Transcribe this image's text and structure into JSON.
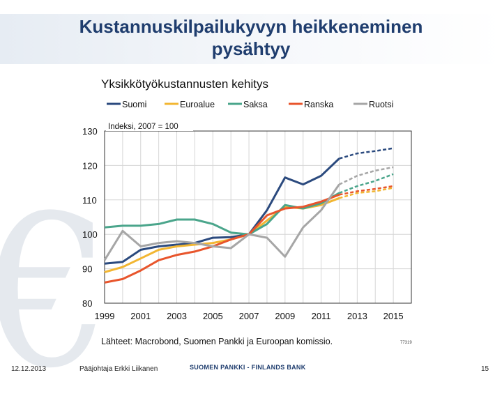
{
  "slide": {
    "title_line1": "Kustannuskilpailukyvyn heikkeneminen",
    "title_line2": "pysähtyy"
  },
  "footer": {
    "date": "12.12.2013",
    "author": "Pääjohtaja Erkki Liikanen",
    "bank": "SUOMEN PANKKI - FINLANDS BANK",
    "page": "15"
  },
  "colors": {
    "Suomi": "#2b4a7e",
    "Euroalue": "#f2b632",
    "Saksa": "#4aa58b",
    "Ranska": "#e8552c",
    "Ruotsi": "#a6a6a6"
  },
  "chart_data": {
    "type": "line",
    "title": "Yksikkötyökustannusten kehitys",
    "note": "Indeksi, 2007 = 100",
    "source": "Lähteet: Macrobond, Suomen Pankki ja Euroopan komissio.",
    "code": "77319",
    "ylim": [
      80,
      130
    ],
    "yticks": [
      80,
      90,
      100,
      110,
      120,
      130
    ],
    "xlim": [
      1999,
      2016
    ],
    "xticks": [
      1999,
      2001,
      2003,
      2005,
      2007,
      2009,
      2011,
      2013,
      2015
    ],
    "grid": true,
    "legend_position": "top",
    "forecast_start": 2012,
    "x": [
      1999,
      2000,
      2001,
      2002,
      2003,
      2004,
      2005,
      2006,
      2007,
      2008,
      2009,
      2010,
      2011,
      2012,
      2013,
      2014,
      2015
    ],
    "series": [
      {
        "name": "Suomi",
        "values": [
          91.5,
          92,
          95.5,
          96.5,
          97,
          97.5,
          99,
          99.2,
          100,
          107,
          116.5,
          114.5,
          117,
          122,
          123.5,
          124.2,
          125
        ]
      },
      {
        "name": "Euroalue",
        "values": [
          89,
          90.5,
          93,
          95.5,
          96.5,
          97,
          97.5,
          98.5,
          100,
          104,
          108,
          107.5,
          108.5,
          110.5,
          112,
          112.5,
          113.5
        ]
      },
      {
        "name": "Saksa",
        "values": [
          102,
          102.5,
          102.5,
          103,
          104.3,
          104.3,
          103,
          100.5,
          100,
          103,
          108.5,
          107.5,
          109,
          112,
          114,
          115.5,
          117.5
        ]
      },
      {
        "name": "Ranska",
        "values": [
          86,
          87,
          89.5,
          92.5,
          94,
          95,
          96.5,
          98.5,
          100,
          105.5,
          107.5,
          108,
          109.5,
          111.5,
          112.5,
          113.2,
          114
        ]
      },
      {
        "name": "Ruotsi",
        "values": [
          92.5,
          101,
          96.5,
          97.5,
          98,
          97.5,
          96.5,
          96,
          100,
          99,
          93.5,
          102,
          107,
          114.5,
          117,
          118.5,
          119.5
        ]
      }
    ]
  }
}
